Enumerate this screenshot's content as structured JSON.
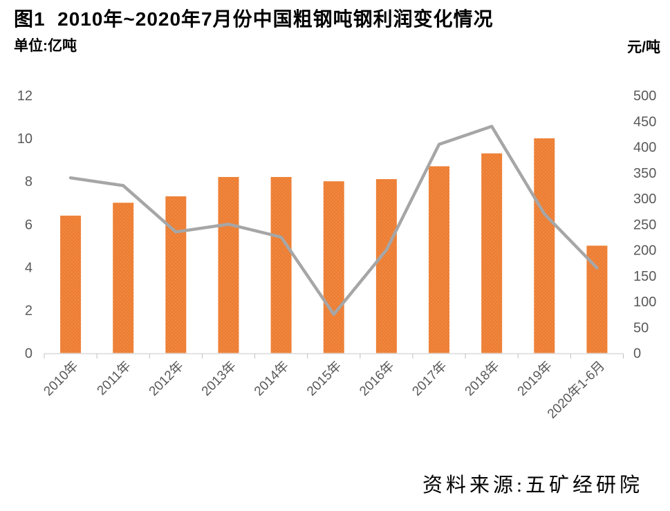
{
  "title": "图1  2010年~2020年7月份中国粗钢吨钢利润变化情况",
  "left_unit": "单位:亿吨",
  "right_unit": "元/吨",
  "source": "资料来源:五矿经研院",
  "colors": {
    "bar": "#ED7D31",
    "bar_dot": "#F08C49",
    "line": "#A6A6A6",
    "axis_text": "#595959",
    "axis_line": "#D9D9D9",
    "tick_mark": "#BFBFBF"
  },
  "chart_data": {
    "type": "combo-bar-line",
    "categories": [
      "2010年",
      "2011年",
      "2012年",
      "2013年",
      "2014年",
      "2015年",
      "2016年",
      "2017年",
      "2018年",
      "2019年",
      "2020年1-6月"
    ],
    "series": [
      {
        "type": "bar",
        "axis": "left",
        "unit": "亿吨",
        "values": [
          6.4,
          7.0,
          7.3,
          8.2,
          8.2,
          8.0,
          8.1,
          8.7,
          9.3,
          10.0,
          5.0
        ]
      },
      {
        "type": "line",
        "axis": "right",
        "unit": "元/吨",
        "values": [
          340,
          325,
          235,
          250,
          225,
          75,
          200,
          405,
          440,
          270,
          165
        ]
      }
    ],
    "left_axis": {
      "min": 0,
      "max": 12,
      "step": 2,
      "ticks": [
        0,
        2,
        4,
        6,
        8,
        10,
        12
      ]
    },
    "right_axis": {
      "min": 0,
      "max": 500,
      "step": 50,
      "ticks": [
        0,
        50,
        100,
        150,
        200,
        250,
        300,
        350,
        400,
        450,
        500
      ]
    },
    "grid": false,
    "legend": "none"
  }
}
